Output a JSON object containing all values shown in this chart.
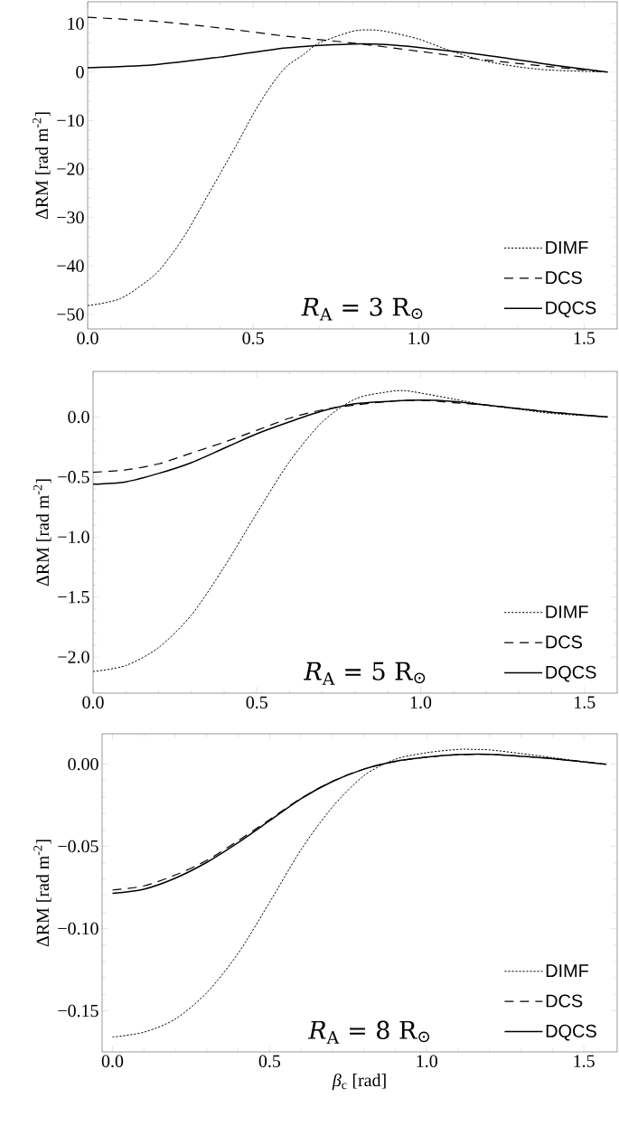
{
  "chart_data": [
    {
      "type": "line",
      "ylabel": "ΔRM [rad m$^{-2}$]",
      "annotations": [
        "*R*$_{A}$ = 3 R$_{⊙}$"
      ],
      "legend": "bottom right",
      "xlim": [
        0,
        1.6
      ],
      "ylim": [
        -53,
        14.5
      ],
      "xticks": [
        {
          "value": 0,
          "label": "0.0"
        },
        {
          "value": 0.5,
          "label": "0.5"
        },
        {
          "value": 1,
          "label": "1.0"
        },
        {
          "value": 1.5,
          "label": "1.5"
        }
      ],
      "yticks": [
        {
          "value": -50,
          "label": "−50"
        },
        {
          "value": -40,
          "label": "−40"
        },
        {
          "value": -30,
          "label": "−30"
        },
        {
          "value": -20,
          "label": "−20"
        },
        {
          "value": -10,
          "label": "−10"
        },
        {
          "value": 0,
          "label": "0"
        },
        {
          "value": 10,
          "label": "10"
        }
      ],
      "series": [
        {
          "name": "DIMF",
          "color": "#000000",
          "line_style": "dotted",
          "x": [
            0,
            0.1,
            0.2,
            0.25,
            0.3,
            0.35,
            0.4,
            0.45,
            0.5,
            0.55,
            0.6,
            0.65,
            0.7,
            0.8,
            0.85,
            0.9,
            1.0,
            1.1,
            1.2,
            1.3,
            1.4,
            1.571
          ],
          "values": [
            -48.2,
            -46.7,
            -42,
            -38,
            -33,
            -27,
            -21,
            -15,
            -8.7,
            -3.2,
            1.1,
            3.5,
            6,
            8.4,
            8.7,
            8.4,
            6.8,
            4.3,
            2.3,
            1.1,
            0.4,
            0
          ]
        },
        {
          "name": "DCS",
          "color": "#000000",
          "line_style": "dashed",
          "x": [
            0,
            0.2,
            0.4,
            0.6,
            0.8,
            1.0,
            1.2,
            1.4,
            1.571
          ],
          "values": [
            11.3,
            10.5,
            9.1,
            7.4,
            6.0,
            4.3,
            2.5,
            1.1,
            0
          ]
        },
        {
          "name": "DQCS",
          "color": "#000000",
          "line_style": "solid",
          "x": [
            0,
            0.2,
            0.4,
            0.6,
            0.8,
            0.9,
            1.0,
            1.2,
            1.4,
            1.571
          ],
          "values": [
            0.9,
            1.5,
            3.1,
            5.0,
            5.8,
            5.7,
            5.1,
            3.5,
            1.5,
            0
          ]
        }
      ]
    },
    {
      "type": "line",
      "ylabel": "ΔRM [rad m$^{-2}$]",
      "annotations": [
        "*R*$_{A}$ = 5 R$_{⊙}$"
      ],
      "legend": "bottom right",
      "xlim": [
        0,
        1.6
      ],
      "ylim": [
        -2.3,
        0.38
      ],
      "xticks": [
        {
          "value": 0,
          "label": "0.0"
        },
        {
          "value": 0.5,
          "label": "0.5"
        },
        {
          "value": 1,
          "label": "1.0"
        },
        {
          "value": 1.5,
          "label": "1.5"
        }
      ],
      "yticks": [
        {
          "value": -2,
          "label": "−2.0"
        },
        {
          "value": -1.5,
          "label": "−1.5"
        },
        {
          "value": -1,
          "label": "−1.0"
        },
        {
          "value": -0.5,
          "label": "−0.5"
        },
        {
          "value": 0,
          "label": "0.0"
        }
      ],
      "series": [
        {
          "name": "DIMF",
          "color": "#000000",
          "line_style": "dotted",
          "x": [
            0,
            0.1,
            0.2,
            0.3,
            0.4,
            0.5,
            0.6,
            0.7,
            0.8,
            0.9,
            0.95,
            1.0,
            1.1,
            1.2,
            1.3,
            1.4,
            1.571
          ],
          "values": [
            -2.12,
            -2.07,
            -1.92,
            -1.65,
            -1.25,
            -0.8,
            -0.37,
            -0.04,
            0.15,
            0.21,
            0.22,
            0.2,
            0.15,
            0.1,
            0.065,
            0.03,
            0
          ]
        },
        {
          "name": "DCS",
          "color": "#000000",
          "line_style": "dashed",
          "x": [
            0,
            0.1,
            0.2,
            0.3,
            0.4,
            0.5,
            0.6,
            0.7,
            0.8,
            0.9,
            1.0,
            1.1,
            1.2,
            1.3,
            1.4,
            1.571
          ],
          "values": [
            -0.46,
            -0.44,
            -0.39,
            -0.3,
            -0.21,
            -0.11,
            -0.01,
            0.06,
            0.1,
            0.13,
            0.14,
            0.12,
            0.1,
            0.07,
            0.04,
            0
          ]
        },
        {
          "name": "DQCS",
          "color": "#000000",
          "line_style": "solid",
          "x": [
            0,
            0.1,
            0.2,
            0.3,
            0.4,
            0.5,
            0.6,
            0.7,
            0.8,
            0.9,
            1.0,
            1.1,
            1.2,
            1.3,
            1.4,
            1.571
          ],
          "values": [
            -0.56,
            -0.54,
            -0.47,
            -0.38,
            -0.26,
            -0.14,
            -0.04,
            0.05,
            0.11,
            0.13,
            0.14,
            0.13,
            0.1,
            0.07,
            0.04,
            0
          ]
        }
      ]
    },
    {
      "type": "line",
      "xlabel": "*β*$_{c}$ [rad]",
      "ylabel": "ΔRM [rad m$^{-2}$]",
      "annotations": [
        "*R*$_{A}$ = 8 R$_{⊙}$"
      ],
      "legend": "bottom right",
      "xlim": [
        -0.033,
        1.606
      ],
      "ylim": [
        -0.175,
        0.0185
      ],
      "xticks": [
        {
          "value": 0,
          "label": "0.0"
        },
        {
          "value": 0.5,
          "label": "0.5"
        },
        {
          "value": 1,
          "label": "1.0"
        },
        {
          "value": 1.5,
          "label": "1.5"
        }
      ],
      "yticks": [
        {
          "value": -0.15,
          "label": "−0.15"
        },
        {
          "value": -0.1,
          "label": "−0.10"
        },
        {
          "value": -0.05,
          "label": "−0.05"
        },
        {
          "value": 0,
          "label": "0.00"
        }
      ],
      "series": [
        {
          "name": "DIMF",
          "color": "#000000",
          "line_style": "dotted",
          "x": [
            0,
            0.1,
            0.2,
            0.3,
            0.4,
            0.5,
            0.6,
            0.7,
            0.8,
            0.9,
            1.0,
            1.1,
            1.15,
            1.2,
            1.3,
            1.4,
            1.5,
            1.571
          ],
          "values": [
            -0.166,
            -0.163,
            -0.155,
            -0.139,
            -0.115,
            -0.084,
            -0.052,
            -0.026,
            -0.007,
            0.003,
            0.007,
            0.009,
            0.009,
            0.0087,
            0.0065,
            0.004,
            0.0015,
            0
          ]
        },
        {
          "name": "DCS",
          "color": "#000000",
          "line_style": "dashed",
          "x": [
            0,
            0.1,
            0.2,
            0.3,
            0.4,
            0.5,
            0.6,
            0.7,
            0.8,
            0.9,
            1.0,
            1.1,
            1.2,
            1.3,
            1.4,
            1.5,
            1.571
          ],
          "values": [
            -0.0766,
            -0.074,
            -0.0674,
            -0.0585,
            -0.0465,
            -0.0337,
            -0.0207,
            -0.0104,
            -0.003,
            0.0017,
            0.0043,
            0.0058,
            0.006,
            0.0048,
            0.0034,
            0.0014,
            0
          ]
        },
        {
          "name": "DQCS",
          "color": "#000000",
          "line_style": "solid",
          "x": [
            0,
            0.1,
            0.2,
            0.3,
            0.4,
            0.5,
            0.6,
            0.7,
            0.8,
            0.9,
            1.0,
            1.1,
            1.2,
            1.3,
            1.4,
            1.5,
            1.571
          ],
          "values": [
            -0.0785,
            -0.076,
            -0.0693,
            -0.0597,
            -0.0477,
            -0.0344,
            -0.021,
            -0.0105,
            -0.003,
            0.0017,
            0.0043,
            0.0058,
            0.006,
            0.0048,
            0.0034,
            0.0014,
            0
          ]
        }
      ]
    }
  ]
}
